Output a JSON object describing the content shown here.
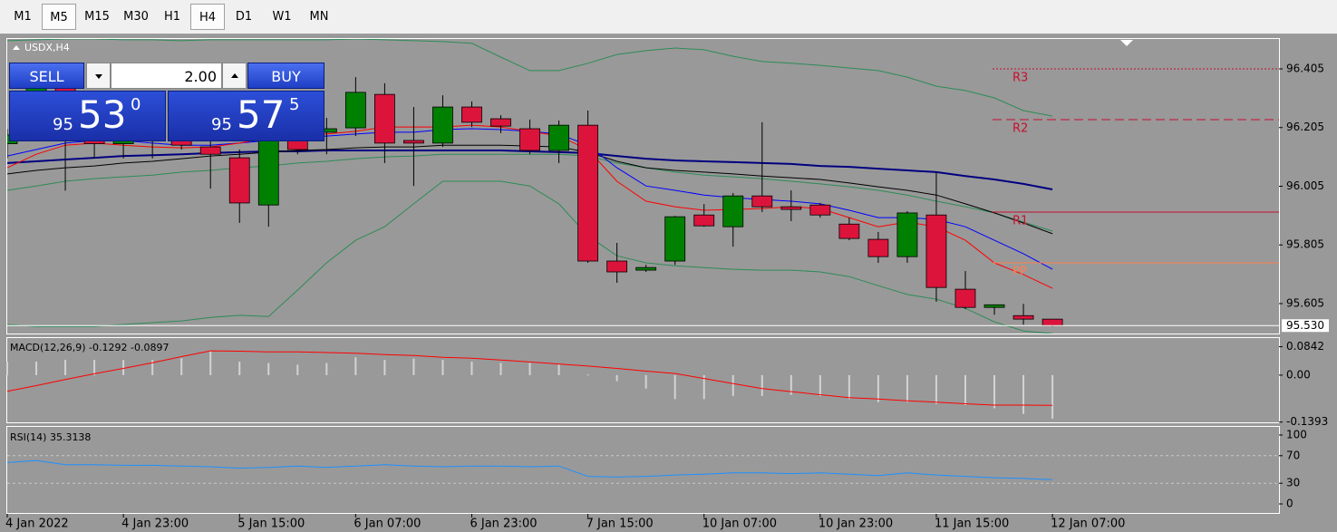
{
  "toolbar": {
    "timeframes": [
      "M1",
      "M5",
      "M15",
      "M30",
      "H1",
      "H4",
      "D1",
      "W1",
      "MN"
    ],
    "pressed": [
      "M5",
      "H4"
    ]
  },
  "trade_panel": {
    "sell_label": "SELL",
    "buy_label": "BUY",
    "volume": "2.00",
    "sell": {
      "big": "95",
      "pips": "53",
      "fraction": "0"
    },
    "buy": {
      "big": "95",
      "pips": "57",
      "fraction": "5"
    }
  },
  "chart_data": {
    "type": "candlestick",
    "title": "USDX,H4",
    "up_color": "#008000",
    "down_color": "#dc143c",
    "ylim": [
      95.503,
      96.51
    ],
    "yticks": [
      96.405,
      96.205,
      96.005,
      95.805,
      95.605
    ],
    "last_price": {
      "value": 95.53,
      "label": "95.530"
    },
    "x_labels": [
      "4 Jan 2022",
      "4 Jan 23:00",
      "5 Jan 15:00",
      "6 Jan 07:00",
      "6 Jan 23:00",
      "7 Jan 15:00",
      "10 Jan 07:00",
      "10 Jan 23:00",
      "11 Jan 15:00",
      "12 Jan 07:00"
    ],
    "candles": {
      "open": [
        96.15,
        96.28,
        96.37,
        96.2,
        96.15,
        96.17,
        96.17,
        96.139,
        96.102,
        95.941,
        96.161,
        96.189,
        96.204,
        96.318,
        96.161,
        96.152,
        96.275,
        96.235,
        96.201,
        96.127,
        96.213,
        95.75,
        95.719,
        95.75,
        95.907,
        95.867,
        95.972,
        95.935,
        95.941,
        95.876,
        95.824,
        95.765,
        95.907,
        95.654,
        95.592,
        95.564,
        95.552
      ],
      "high": [
        96.2,
        96.4,
        96.4,
        96.25,
        96.22,
        96.2,
        96.207,
        96.161,
        96.13,
        96.207,
        96.192,
        96.238,
        96.377,
        96.356,
        96.275,
        96.315,
        96.294,
        96.247,
        96.232,
        96.229,
        96.263,
        95.812,
        95.737,
        95.904,
        95.944,
        95.982,
        96.223,
        95.991,
        95.948,
        95.898,
        95.849,
        95.92,
        96.053,
        95.716,
        95.601,
        95.604,
        95.552
      ],
      "low": [
        96.1,
        96.25,
        95.99,
        96.1,
        96.1,
        96.1,
        96.13,
        95.997,
        95.88,
        95.867,
        96.114,
        96.114,
        96.176,
        96.084,
        96.006,
        96.139,
        96.207,
        96.186,
        96.114,
        96.084,
        95.744,
        95.676,
        95.713,
        95.737,
        95.867,
        95.799,
        95.917,
        95.886,
        95.898,
        95.821,
        95.744,
        95.744,
        95.611,
        95.586,
        95.567,
        95.533,
        95.527
      ],
      "close": [
        96.18,
        96.38,
        96.2,
        96.15,
        96.17,
        96.16,
        96.145,
        96.114,
        95.948,
        96.176,
        96.13,
        96.201,
        96.325,
        96.152,
        96.152,
        96.275,
        96.223,
        96.21,
        96.127,
        96.213,
        95.75,
        95.713,
        95.728,
        95.901,
        95.87,
        95.972,
        95.935,
        95.926,
        95.907,
        95.827,
        95.765,
        95.914,
        95.66,
        95.592,
        95.601,
        95.552,
        95.53
      ]
    },
    "lines": [
      {
        "color": "#2e8b57",
        "width": 1,
        "values": [
          96.501,
          96.504,
          96.507,
          96.507,
          96.504,
          96.504,
          96.501,
          96.504,
          96.504,
          96.504,
          96.504,
          96.504,
          96.507,
          96.504,
          96.501,
          96.498,
          96.492,
          96.445,
          96.399,
          96.399,
          96.424,
          96.454,
          96.467,
          96.476,
          96.47,
          96.448,
          96.43,
          96.424,
          96.417,
          96.408,
          96.399,
          96.377,
          96.346,
          96.331,
          96.306,
          96.263,
          96.244
        ]
      },
      {
        "color": "#2e8b57",
        "width": 1,
        "values": [
          95.991,
          96.006,
          96.022,
          96.031,
          96.037,
          96.043,
          96.053,
          96.059,
          96.068,
          96.074,
          96.084,
          96.09,
          96.099,
          96.105,
          96.108,
          96.114,
          96.114,
          96.114,
          96.114,
          96.114,
          96.108,
          96.084,
          96.068,
          96.053,
          96.043,
          96.037,
          96.031,
          96.022,
          96.013,
          96.003,
          95.991,
          95.975,
          95.954,
          95.935,
          95.914,
          95.883,
          95.852
        ]
      },
      {
        "color": "#2e8b57",
        "width": 1,
        "values": [
          95.534,
          95.527,
          95.527,
          95.527,
          95.534,
          95.54,
          95.546,
          95.558,
          95.565,
          95.561,
          95.651,
          95.744,
          95.821,
          95.867,
          95.945,
          96.022,
          96.022,
          96.022,
          96.006,
          95.945,
          95.836,
          95.768,
          95.744,
          95.734,
          95.728,
          95.722,
          95.719,
          95.719,
          95.713,
          95.697,
          95.666,
          95.636,
          95.62,
          95.589,
          95.543,
          95.512,
          95.503
        ]
      },
      {
        "color": "#000080",
        "width": 2,
        "values": [
          96.084,
          96.09,
          96.096,
          96.102,
          96.108,
          96.111,
          96.114,
          96.118,
          96.121,
          96.124,
          96.124,
          96.127,
          96.127,
          96.127,
          96.127,
          96.127,
          96.127,
          96.127,
          96.124,
          96.121,
          96.118,
          96.108,
          96.099,
          96.093,
          96.09,
          96.087,
          96.084,
          96.081,
          96.074,
          96.071,
          96.065,
          96.059,
          96.053,
          96.04,
          96.028,
          96.013,
          95.994
        ]
      },
      {
        "color": "#000000",
        "width": 1,
        "values": [
          96.047,
          96.059,
          96.068,
          96.074,
          96.084,
          96.09,
          96.099,
          96.108,
          96.114,
          96.121,
          96.127,
          96.13,
          96.136,
          96.139,
          96.139,
          96.145,
          96.145,
          96.145,
          96.142,
          96.139,
          96.121,
          96.09,
          96.068,
          96.059,
          96.053,
          96.047,
          96.04,
          96.034,
          96.028,
          96.016,
          96.003,
          95.991,
          95.975,
          95.945,
          95.914,
          95.88,
          95.843
        ]
      },
      {
        "color": "#0000ff",
        "width": 1,
        "values": [
          96.108,
          96.13,
          96.152,
          96.161,
          96.161,
          96.152,
          96.145,
          96.145,
          96.152,
          96.161,
          96.17,
          96.176,
          96.183,
          96.189,
          96.189,
          96.198,
          96.201,
          96.198,
          96.192,
          96.183,
          96.145,
          96.068,
          96.006,
          95.991,
          95.975,
          95.966,
          95.96,
          95.954,
          95.945,
          95.923,
          95.898,
          95.898,
          95.892,
          95.867,
          95.821,
          95.775,
          95.722
        ]
      },
      {
        "color": "#ff0000",
        "width": 1,
        "values": [
          96.068,
          96.114,
          96.145,
          96.152,
          96.145,
          96.139,
          96.136,
          96.139,
          96.152,
          96.17,
          96.176,
          96.183,
          96.192,
          96.207,
          96.207,
          96.207,
          96.213,
          96.207,
          96.192,
          96.176,
          96.13,
          96.022,
          95.954,
          95.935,
          95.923,
          95.926,
          95.929,
          95.935,
          95.929,
          95.898,
          95.867,
          95.883,
          95.867,
          95.821,
          95.744,
          95.704,
          95.657
        ]
      }
    ],
    "pivots": [
      {
        "name": "R3",
        "value": 96.405,
        "color": "#c8102e",
        "style": "dotted"
      },
      {
        "name": "R2",
        "value": 96.232,
        "color": "#c8102e",
        "style": "dashed"
      },
      {
        "name": "R1",
        "value": 95.917,
        "color": "#c8102e",
        "style": "solid"
      },
      {
        "name": "PP",
        "value": 95.744,
        "color": "#ff7f50",
        "style": "solid"
      }
    ]
  },
  "macd": {
    "label": "MACD(12,26,9) -0.1292 -0.0897",
    "ylim": [
      -0.14,
      0.11
    ],
    "yticks": [
      0.0842,
      {
        "value": 0,
        "label": "0.00"
      },
      -0.1393
    ],
    "histogram_color": "#d3d3d3",
    "signal_color": "#ff0000",
    "histogram": [
      0.04,
      0.04,
      0.045,
      0.045,
      0.045,
      0.045,
      0.05,
      0.072,
      0.04,
      0.036,
      0.031,
      0.036,
      0.053,
      0.045,
      0.049,
      0.045,
      0.04,
      0.036,
      0.036,
      0.031,
      0.002,
      -0.018,
      -0.04,
      -0.071,
      -0.071,
      -0.062,
      -0.062,
      -0.058,
      -0.062,
      -0.071,
      -0.08,
      -0.08,
      -0.085,
      -0.089,
      -0.098,
      -0.115,
      -0.1292
    ],
    "signal": [
      -0.048,
      -0.031,
      -0.013,
      0.004,
      0.02,
      0.037,
      0.055,
      0.072,
      0.071,
      0.069,
      0.069,
      0.067,
      0.065,
      0.061,
      0.058,
      0.053,
      0.05,
      0.045,
      0.039,
      0.033,
      0.027,
      0.02,
      0.012,
      0.005,
      -0.01,
      -0.025,
      -0.04,
      -0.049,
      -0.058,
      -0.067,
      -0.071,
      -0.076,
      -0.08,
      -0.085,
      -0.089,
      -0.089,
      -0.0897
    ]
  },
  "rsi": {
    "label": "RSI(14) 35.3138",
    "ylim": [
      0,
      100
    ],
    "yticks": [
      100,
      70,
      30,
      0
    ],
    "levels": [
      70,
      30
    ],
    "color": "#1e90ff",
    "values": [
      60,
      63,
      57,
      57,
      56,
      56,
      55,
      54,
      52,
      53,
      55,
      53,
      55,
      57,
      55,
      54,
      55,
      55,
      54,
      55,
      40,
      39,
      40,
      42,
      43,
      45,
      45,
      44,
      45,
      43,
      41,
      45,
      42,
      40,
      38,
      37,
      35.3138
    ]
  }
}
